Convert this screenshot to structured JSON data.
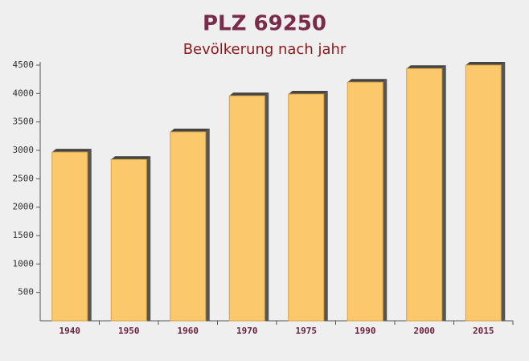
{
  "chart_data": {
    "type": "bar",
    "title": "PLZ 69250",
    "subtitle": "Bevölkerung nach jahr",
    "categories": [
      "1940",
      "1950",
      "1960",
      "1970",
      "1975",
      "1990",
      "2000",
      "2015"
    ],
    "values": [
      2970,
      2840,
      3325,
      3960,
      3990,
      4200,
      4440,
      4500
    ],
    "color": "#fbc96b",
    "ylim": [
      0,
      4500
    ],
    "yticks": [
      500,
      1000,
      1500,
      2000,
      2500,
      3000,
      3500,
      4000,
      4500
    ],
    "grid": false
  }
}
